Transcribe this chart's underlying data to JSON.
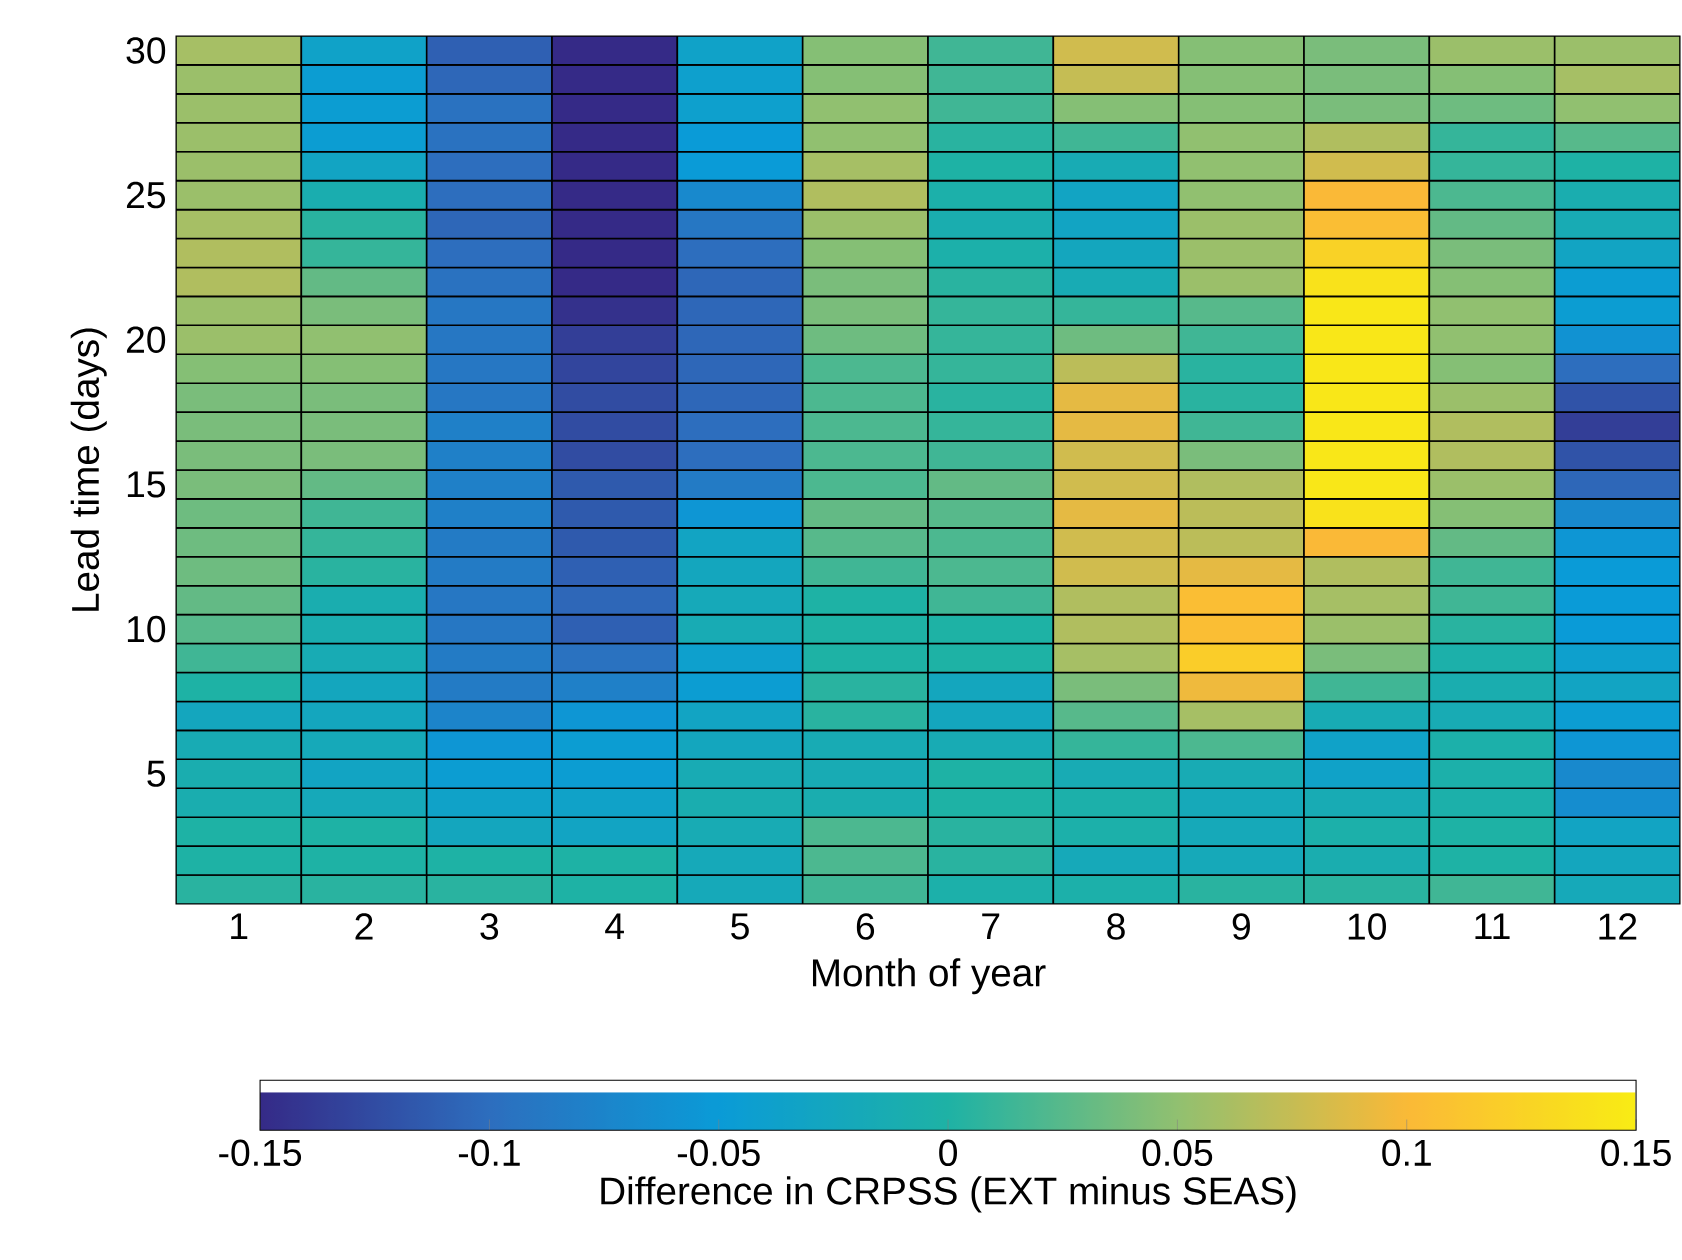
{
  "chart_data": {
    "type": "heatmap",
    "xlabel": "Month of year",
    "ylabel": "Lead time (days)",
    "clabel": "Difference in CRPSS (EXT minus SEAS)",
    "categories": [
      "1",
      "2",
      "3",
      "4",
      "5",
      "6",
      "7",
      "8",
      "9",
      "10",
      "11",
      "12"
    ],
    "y_categories": [
      "30",
      null,
      null,
      null,
      null,
      "25",
      null,
      null,
      null,
      null,
      "20",
      null,
      null,
      null,
      null,
      "15",
      null,
      null,
      null,
      null,
      "10",
      null,
      null,
      null,
      null,
      "5",
      null,
      null,
      null,
      null
    ],
    "cells": [
      [
        0.06,
        -0.035,
        -0.11,
        -0.15,
        -0.035,
        0.045,
        0.015,
        0.08,
        0.045,
        0.04,
        0.055,
        0.055
      ],
      [
        0.055,
        -0.045,
        -0.105,
        -0.15,
        -0.04,
        0.045,
        0.015,
        0.075,
        0.045,
        0.04,
        0.045,
        0.06
      ],
      [
        0.055,
        -0.045,
        -0.095,
        -0.15,
        -0.04,
        0.05,
        0.015,
        0.045,
        0.045,
        0.04,
        0.035,
        0.05
      ],
      [
        0.055,
        -0.045,
        -0.095,
        -0.15,
        -0.05,
        0.05,
        0.005,
        0.015,
        0.05,
        0.065,
        0.01,
        0.025
      ],
      [
        0.055,
        -0.03,
        -0.1,
        -0.15,
        -0.05,
        0.06,
        0.0,
        -0.015,
        0.05,
        0.08,
        0.01,
        0.0
      ],
      [
        0.055,
        -0.01,
        -0.1,
        -0.15,
        -0.07,
        0.065,
        -0.005,
        -0.03,
        0.05,
        0.1,
        0.02,
        -0.01
      ],
      [
        0.06,
        0.005,
        -0.105,
        -0.15,
        -0.09,
        0.055,
        -0.01,
        -0.03,
        0.055,
        0.105,
        0.03,
        -0.015
      ],
      [
        0.065,
        0.01,
        -0.1,
        -0.15,
        -0.1,
        0.045,
        -0.005,
        -0.025,
        0.055,
        0.125,
        0.04,
        -0.03
      ],
      [
        0.065,
        0.03,
        -0.095,
        -0.15,
        -0.105,
        0.04,
        0.005,
        -0.015,
        0.055,
        0.14,
        0.045,
        -0.045
      ],
      [
        0.055,
        0.04,
        -0.09,
        -0.145,
        -0.105,
        0.04,
        0.01,
        0.01,
        0.025,
        0.145,
        0.05,
        -0.045
      ],
      [
        0.055,
        0.05,
        -0.09,
        -0.135,
        -0.105,
        0.035,
        0.01,
        0.035,
        0.015,
        0.145,
        0.05,
        -0.06
      ],
      [
        0.045,
        0.045,
        -0.09,
        -0.13,
        -0.105,
        0.02,
        0.01,
        0.07,
        0.005,
        0.145,
        0.045,
        -0.1
      ],
      [
        0.04,
        0.04,
        -0.09,
        -0.125,
        -0.105,
        0.02,
        0.005,
        0.09,
        0.005,
        0.145,
        0.055,
        -0.12
      ],
      [
        0.04,
        0.04,
        -0.08,
        -0.125,
        -0.1,
        0.02,
        0.01,
        0.09,
        0.015,
        0.145,
        0.065,
        -0.135
      ],
      [
        0.04,
        0.04,
        -0.08,
        -0.125,
        -0.1,
        0.02,
        0.015,
        0.08,
        0.04,
        0.145,
        0.065,
        -0.12
      ],
      [
        0.04,
        0.03,
        -0.08,
        -0.115,
        -0.085,
        0.02,
        0.03,
        0.08,
        0.065,
        0.145,
        0.055,
        -0.105
      ],
      [
        0.035,
        0.015,
        -0.08,
        -0.115,
        -0.055,
        0.03,
        0.025,
        0.09,
        0.07,
        0.14,
        0.045,
        -0.07
      ],
      [
        0.035,
        0.01,
        -0.085,
        -0.115,
        -0.03,
        0.025,
        0.02,
        0.08,
        0.07,
        0.1,
        0.03,
        -0.055
      ],
      [
        0.035,
        0.005,
        -0.085,
        -0.11,
        -0.025,
        0.015,
        0.02,
        0.08,
        0.09,
        0.065,
        0.015,
        -0.05
      ],
      [
        0.03,
        -0.01,
        -0.09,
        -0.105,
        -0.02,
        0.0,
        0.015,
        0.065,
        0.105,
        0.06,
        0.015,
        -0.05
      ],
      [
        0.025,
        -0.01,
        -0.09,
        -0.11,
        -0.015,
        0.0,
        0.0,
        0.065,
        0.105,
        0.055,
        0.005,
        -0.05
      ],
      [
        0.015,
        -0.015,
        -0.085,
        -0.095,
        -0.04,
        0.0,
        0.0,
        0.06,
        0.12,
        0.04,
        -0.005,
        -0.04
      ],
      [
        0.0,
        -0.025,
        -0.085,
        -0.08,
        -0.045,
        0.005,
        -0.025,
        0.04,
        0.095,
        0.015,
        -0.01,
        -0.03
      ],
      [
        -0.025,
        -0.025,
        -0.075,
        -0.055,
        -0.03,
        0.005,
        -0.025,
        0.025,
        0.06,
        -0.015,
        -0.015,
        -0.045
      ],
      [
        -0.015,
        -0.02,
        -0.055,
        -0.045,
        -0.025,
        -0.015,
        -0.015,
        0.01,
        0.02,
        -0.035,
        -0.005,
        -0.055
      ],
      [
        -0.01,
        -0.03,
        -0.045,
        -0.045,
        -0.015,
        -0.015,
        0.0,
        -0.015,
        -0.015,
        -0.035,
        -0.005,
        -0.07
      ],
      [
        -0.01,
        -0.02,
        -0.035,
        -0.035,
        -0.01,
        -0.01,
        0.0,
        -0.005,
        -0.02,
        -0.015,
        -0.005,
        -0.065
      ],
      [
        0.0,
        0.0,
        -0.025,
        -0.03,
        -0.015,
        0.02,
        0.005,
        -0.005,
        -0.02,
        -0.005,
        0.0,
        -0.03
      ],
      [
        0.0,
        0.0,
        0.0,
        0.0,
        -0.02,
        0.02,
        0.005,
        -0.02,
        -0.02,
        -0.01,
        0.0,
        -0.025
      ],
      [
        0.005,
        0.005,
        0.005,
        0.0,
        -0.02,
        0.015,
        -0.005,
        -0.005,
        0.005,
        0.005,
        0.015,
        -0.02
      ]
    ],
    "clim": [
      -0.15,
      0.15
    ],
    "cticks": [
      -0.15,
      -0.1,
      -0.05,
      0,
      0.05,
      0.1,
      0.15
    ]
  }
}
